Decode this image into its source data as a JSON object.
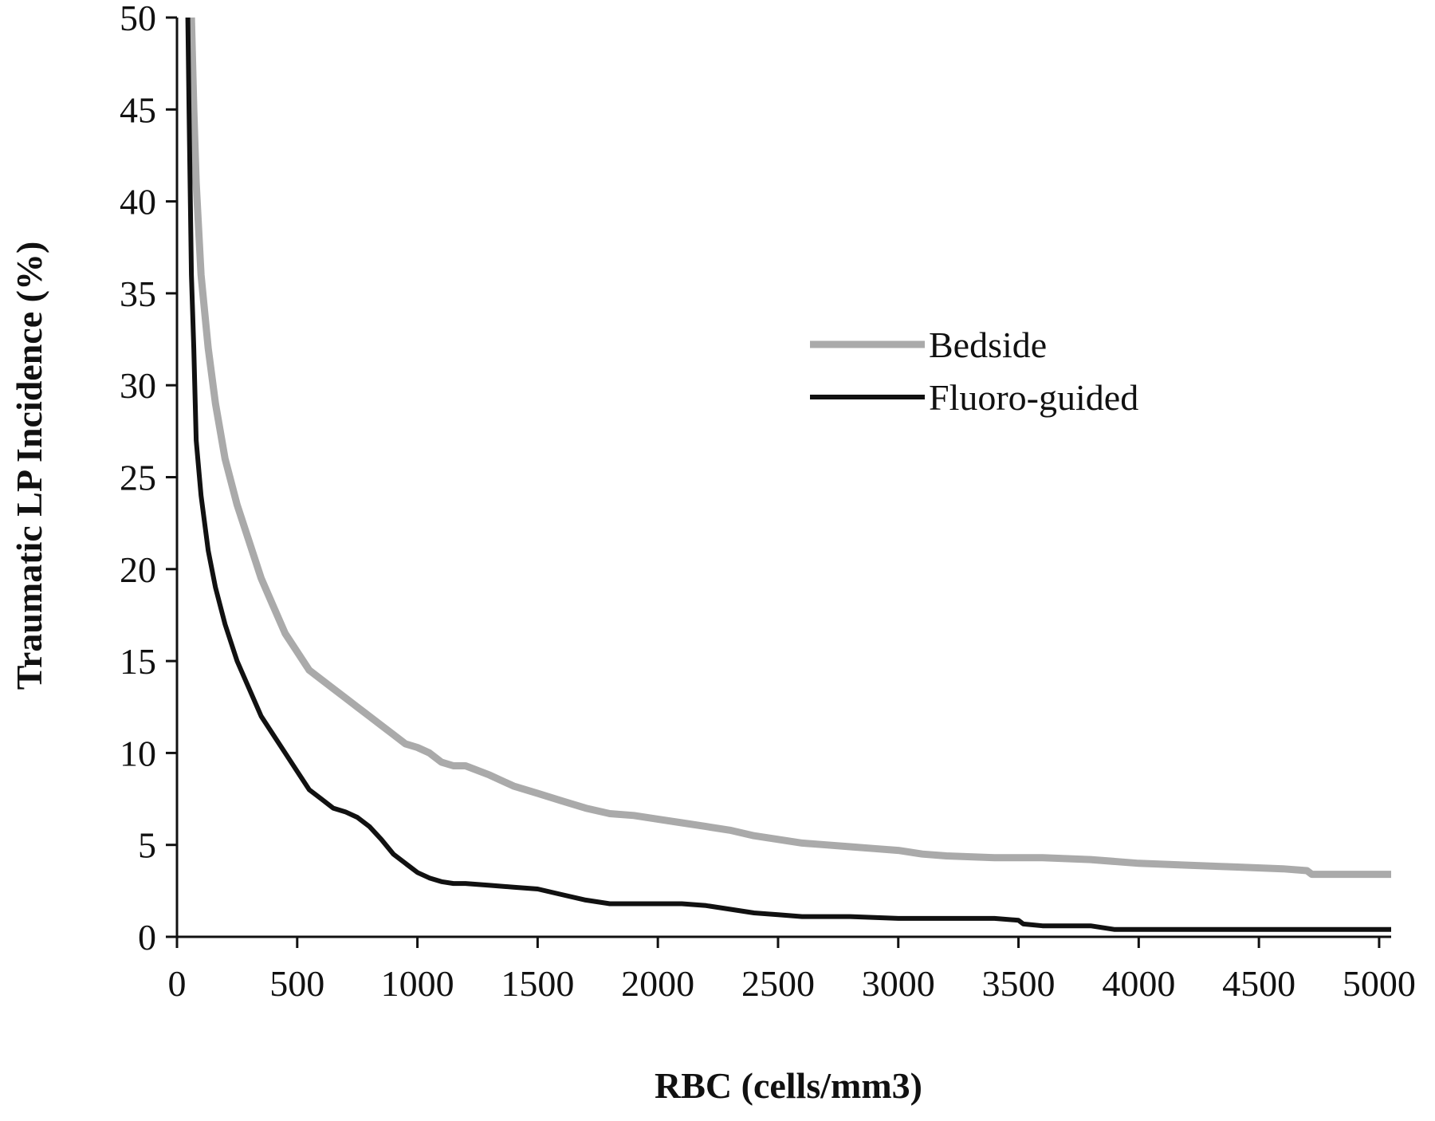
{
  "chart_data": {
    "type": "line",
    "title": "",
    "xlabel": "RBC (cells/mm3)",
    "ylabel": "Traumatic LP Incidence (%)",
    "xlim": [
      0,
      5050
    ],
    "ylim": [
      0,
      50
    ],
    "xticks": [
      0,
      500,
      1000,
      1500,
      2000,
      2500,
      3000,
      3500,
      4000,
      4500,
      5000
    ],
    "yticks": [
      0,
      5,
      10,
      15,
      20,
      25,
      30,
      35,
      40,
      45,
      50
    ],
    "grid": false,
    "legend_position": "right",
    "series": [
      {
        "name": "Bedside",
        "color": "#aaaaaa",
        "x": [
          60,
          70,
          80,
          100,
          130,
          160,
          200,
          250,
          300,
          350,
          400,
          450,
          500,
          550,
          600,
          650,
          700,
          750,
          800,
          850,
          900,
          950,
          1000,
          1050,
          1100,
          1150,
          1200,
          1300,
          1400,
          1500,
          1600,
          1700,
          1800,
          1900,
          2000,
          2100,
          2200,
          2300,
          2400,
          2500,
          2600,
          2700,
          2800,
          2900,
          3000,
          3100,
          3200,
          3400,
          3600,
          3800,
          4000,
          4200,
          4400,
          4600,
          4700,
          4720,
          4800,
          5050
        ],
        "values": [
          50,
          45,
          41,
          36,
          32,
          29,
          26,
          23.5,
          21.5,
          19.5,
          18,
          16.5,
          15.5,
          14.5,
          14,
          13.5,
          13,
          12.5,
          12,
          11.5,
          11,
          10.5,
          10.3,
          10,
          9.5,
          9.3,
          9.3,
          8.8,
          8.2,
          7.8,
          7.4,
          7,
          6.7,
          6.6,
          6.4,
          6.2,
          6,
          5.8,
          5.5,
          5.3,
          5.1,
          5,
          4.9,
          4.8,
          4.7,
          4.5,
          4.4,
          4.3,
          4.3,
          4.2,
          4.0,
          3.9,
          3.8,
          3.7,
          3.6,
          3.4,
          3.4,
          3.4
        ]
      },
      {
        "name": "Fluoro-guided",
        "color": "#111111",
        "x": [
          45,
          50,
          60,
          70,
          80,
          100,
          130,
          160,
          200,
          250,
          300,
          350,
          400,
          450,
          500,
          550,
          600,
          650,
          700,
          750,
          800,
          850,
          900,
          950,
          1000,
          1050,
          1100,
          1150,
          1200,
          1300,
          1400,
          1500,
          1600,
          1700,
          1800,
          1900,
          2000,
          2100,
          2200,
          2300,
          2400,
          2500,
          2600,
          2800,
          3000,
          3200,
          3400,
          3500,
          3520,
          3600,
          3700,
          3800,
          3900,
          4000,
          4500,
          5050
        ],
        "values": [
          50,
          45,
          36,
          32,
          27,
          24,
          21,
          19,
          17,
          15,
          13.5,
          12,
          11,
          10,
          9,
          8,
          7.5,
          7,
          6.8,
          6.5,
          6,
          5.3,
          4.5,
          4,
          3.5,
          3.2,
          3.0,
          2.9,
          2.9,
          2.8,
          2.7,
          2.6,
          2.3,
          2.0,
          1.8,
          1.8,
          1.8,
          1.8,
          1.7,
          1.5,
          1.3,
          1.2,
          1.1,
          1.1,
          1.0,
          1.0,
          1.0,
          0.9,
          0.7,
          0.6,
          0.6,
          0.6,
          0.4,
          0.4,
          0.4,
          0.4
        ]
      }
    ]
  }
}
